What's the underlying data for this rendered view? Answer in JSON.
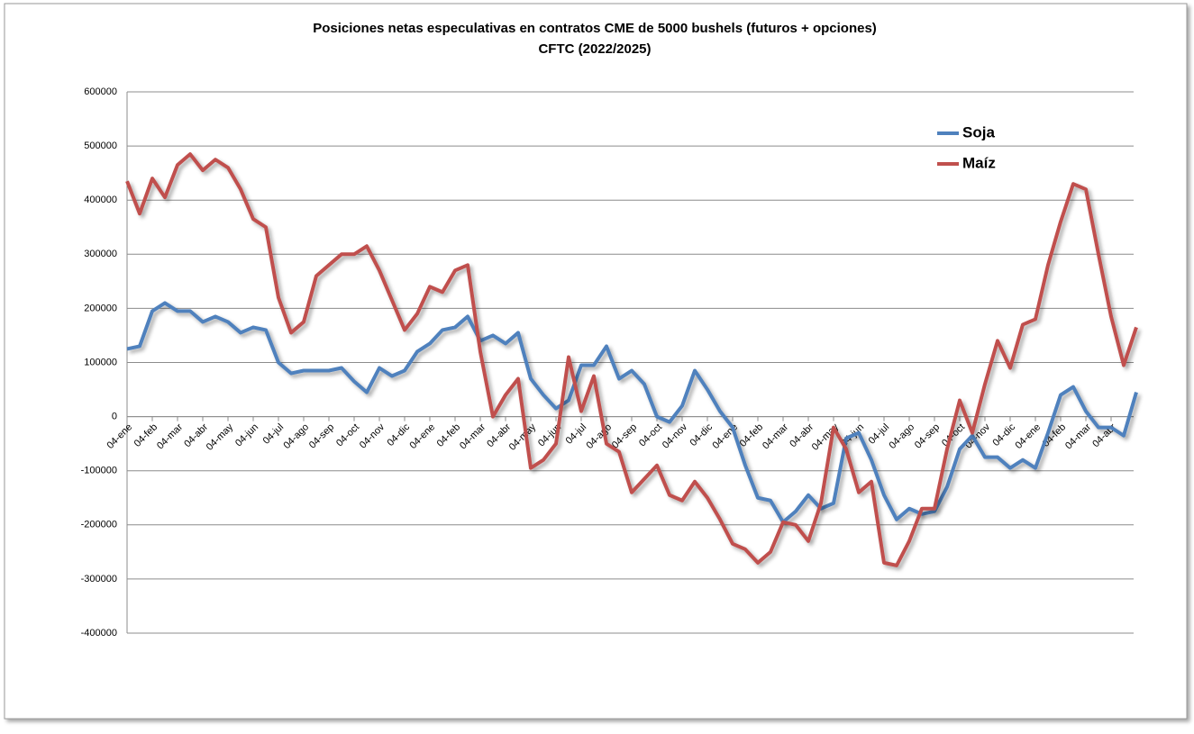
{
  "chart_data": {
    "type": "line",
    "title": "Posiciones netas especulativas en contratos CME de 5000 bushels (futuros + opciones)",
    "subtitle": "CFTC (2022/2025)",
    "categories": [
      "04-ene",
      null,
      "04-feb",
      null,
      "04-mar",
      null,
      "04-abr",
      null,
      "04-may",
      null,
      "04-jun",
      null,
      "04-jul",
      null,
      "04-ago",
      null,
      "04-sep",
      null,
      "04-oct",
      null,
      "04-nov",
      null,
      "04-dic",
      null,
      "04-ene",
      null,
      "04-feb",
      null,
      "04-mar",
      null,
      "04-abr",
      null,
      "04-may",
      null,
      "04-jun",
      null,
      "04-jul",
      null,
      "04-ago",
      null,
      "04-sep",
      null,
      "04-oct",
      null,
      "04-nov",
      null,
      "04-dic",
      null,
      "04-ene",
      null,
      "04-feb",
      null,
      "04-mar",
      null,
      "04-abr",
      null,
      "04-may",
      null,
      "04-jun",
      null,
      "04-jul",
      null,
      "04-ago",
      null,
      "04-sep",
      null,
      "04-oct",
      null,
      "04-nov",
      null,
      "04-dic",
      null,
      "04-ene",
      null,
      "04-feb",
      null,
      "04-mar",
      null,
      "04-abr",
      null,
      null
    ],
    "series": [
      {
        "name": "Soja",
        "color": "#4f81bd",
        "values": [
          125000,
          130000,
          195000,
          210000,
          195000,
          195000,
          175000,
          185000,
          175000,
          155000,
          165000,
          160000,
          100000,
          80000,
          85000,
          85000,
          85000,
          90000,
          65000,
          45000,
          90000,
          75000,
          85000,
          120000,
          135000,
          160000,
          165000,
          185000,
          140000,
          150000,
          135000,
          155000,
          70000,
          40000,
          15000,
          30000,
          95000,
          95000,
          130000,
          70000,
          85000,
          60000,
          0,
          -10000,
          20000,
          85000,
          50000,
          10000,
          -20000,
          -90000,
          -150000,
          -155000,
          -195000,
          -175000,
          -145000,
          -170000,
          -160000,
          -40000,
          -30000,
          -80000,
          -145000,
          -190000,
          -170000,
          -180000,
          -175000,
          -130000,
          -60000,
          -35000,
          -75000,
          -75000,
          -95000,
          -80000,
          -95000,
          -30000,
          40000,
          55000,
          10000,
          -20000,
          -20000,
          -35000,
          45000
        ]
      },
      {
        "name": "Maíz",
        "color": "#c0504d",
        "values": [
          435000,
          375000,
          440000,
          405000,
          465000,
          485000,
          455000,
          475000,
          460000,
          420000,
          365000,
          350000,
          220000,
          155000,
          175000,
          260000,
          280000,
          300000,
          300000,
          315000,
          270000,
          215000,
          160000,
          190000,
          240000,
          230000,
          270000,
          280000,
          120000,
          0,
          40000,
          70000,
          -95000,
          -80000,
          -50000,
          110000,
          10000,
          75000,
          -50000,
          -65000,
          -140000,
          -115000,
          -90000,
          -145000,
          -155000,
          -120000,
          -150000,
          -190000,
          -235000,
          -245000,
          -270000,
          -250000,
          -195000,
          -200000,
          -230000,
          -160000,
          -20000,
          -60000,
          -140000,
          -120000,
          -270000,
          -275000,
          -230000,
          -170000,
          -170000,
          -60000,
          30000,
          -30000,
          60000,
          140000,
          90000,
          170000,
          180000,
          280000,
          360000,
          430000,
          420000,
          300000,
          185000,
          95000,
          165000
        ]
      }
    ],
    "ylim": [
      -400000,
      600000
    ],
    "yticks": [
      -400000,
      -300000,
      -200000,
      -100000,
      0,
      100000,
      200000,
      300000,
      400000,
      500000,
      600000
    ],
    "grid": true
  }
}
